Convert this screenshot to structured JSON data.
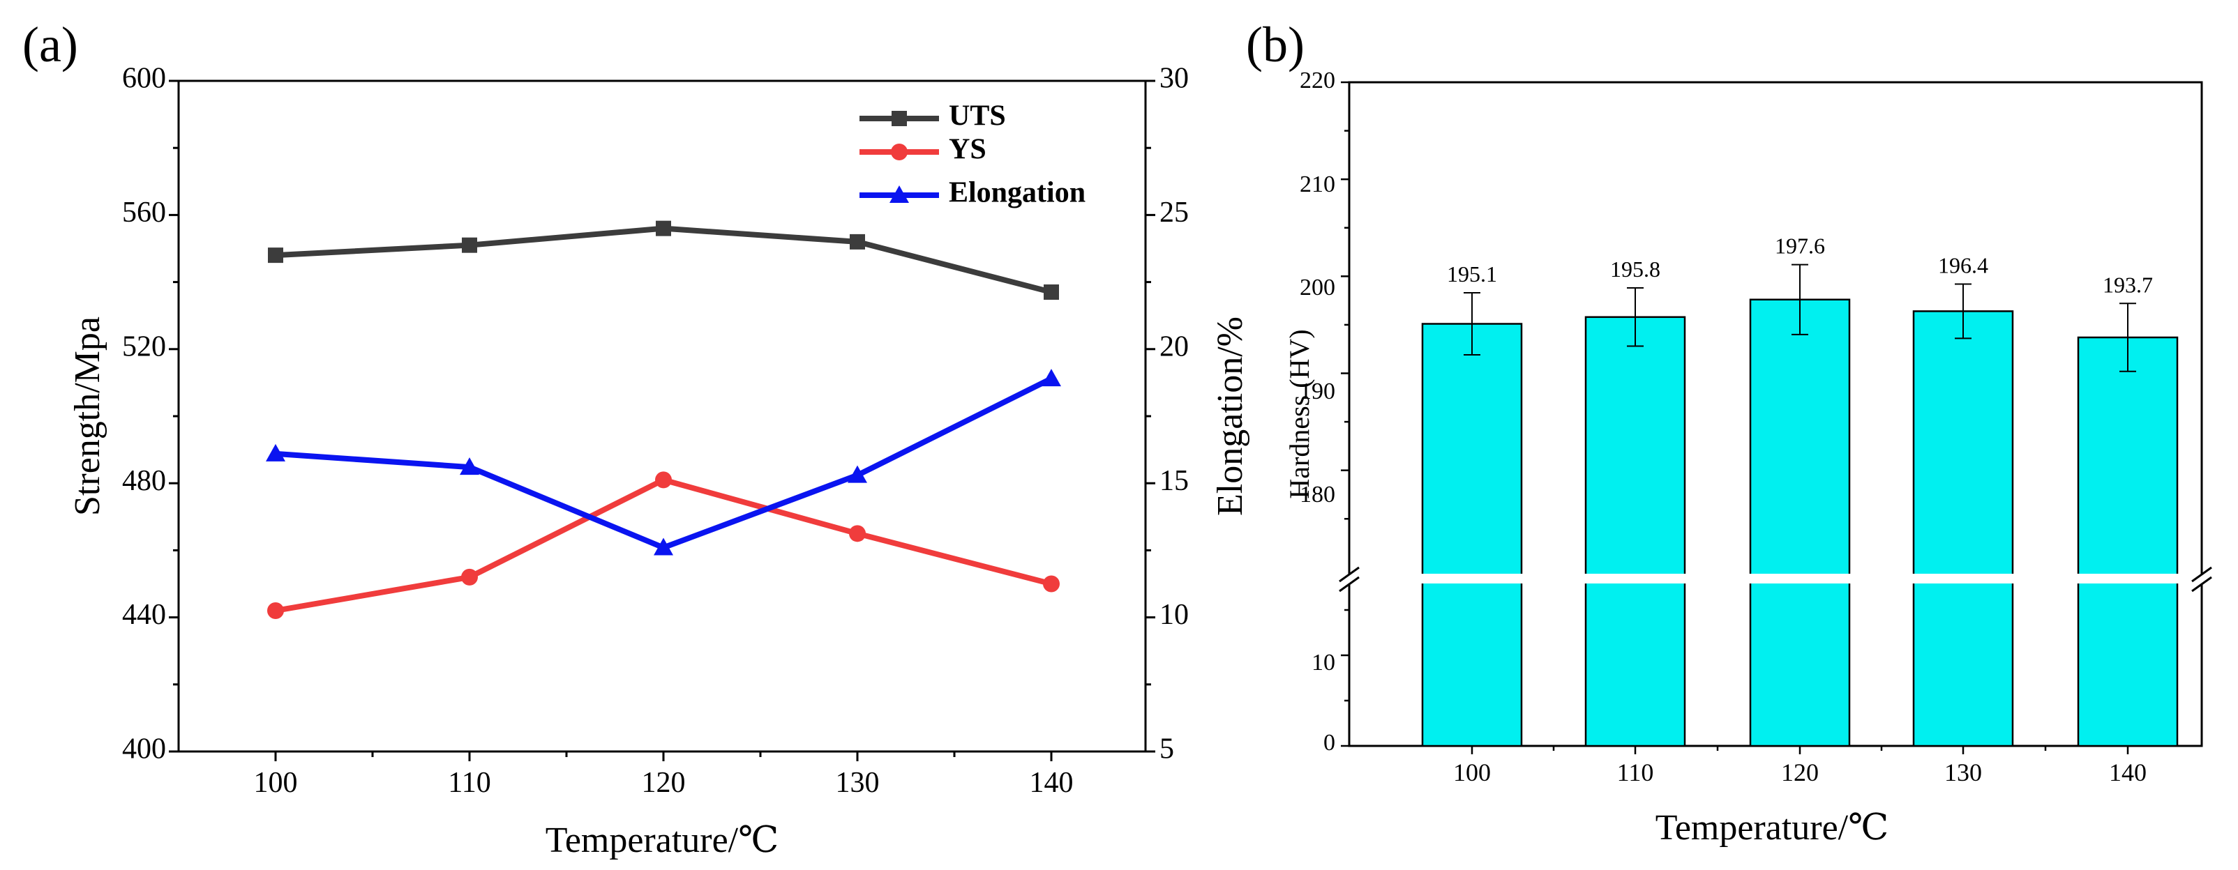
{
  "panels": {
    "a": {
      "label": "(a)"
    },
    "b": {
      "label": "(b)"
    }
  },
  "colors": {
    "uts": "#3c3c3c",
    "ys": "#f03c3c",
    "elongation": "#0a14f0",
    "bar_fill": "#00f0f0"
  },
  "chart_data": [
    {
      "type": "line",
      "x": [
        100,
        110,
        120,
        130,
        140
      ],
      "xlabel": "Temperature/℃",
      "ylabel": "Strength/Mpa",
      "y2label": "Elongation/%",
      "ylim": [
        400,
        600
      ],
      "y2lim": [
        5,
        30
      ],
      "xticks": [
        "100",
        "110",
        "120",
        "130",
        "140"
      ],
      "yticks": [
        "400",
        "440",
        "480",
        "520",
        "560",
        "600"
      ],
      "y2ticks": [
        "5",
        "10",
        "15",
        "20",
        "25",
        "30"
      ],
      "legend_position": "top-right",
      "series": [
        {
          "name": "UTS",
          "axis": "left",
          "marker": "square",
          "values": [
            548,
            551,
            556,
            552,
            537
          ]
        },
        {
          "name": "YS",
          "axis": "left",
          "marker": "circle",
          "values": [
            442,
            452,
            481,
            465,
            450
          ]
        },
        {
          "name": "Elongation",
          "axis": "right",
          "marker": "triangle",
          "values": [
            16.1,
            15.6,
            12.6,
            15.3,
            18.9
          ]
        }
      ]
    },
    {
      "type": "bar",
      "categories": [
        "100",
        "110",
        "120",
        "130",
        "140"
      ],
      "values": [
        195.1,
        195.8,
        197.6,
        196.4,
        193.7
      ],
      "errors": [
        3.2,
        3.0,
        3.6,
        2.8,
        3.5
      ],
      "value_labels": [
        "195.1",
        "195.8",
        "197.6",
        "196.4",
        "193.7"
      ],
      "xlabel": "Temperature/℃",
      "ylabel": "Hardness (HV)",
      "axis_break": true,
      "ylim_lower": [
        0,
        18
      ],
      "ylim_upper": [
        172,
        220
      ],
      "yticks_lower": [
        "0",
        "10"
      ],
      "yticks_upper": [
        "180",
        "190",
        "200",
        "210",
        "220"
      ]
    }
  ]
}
